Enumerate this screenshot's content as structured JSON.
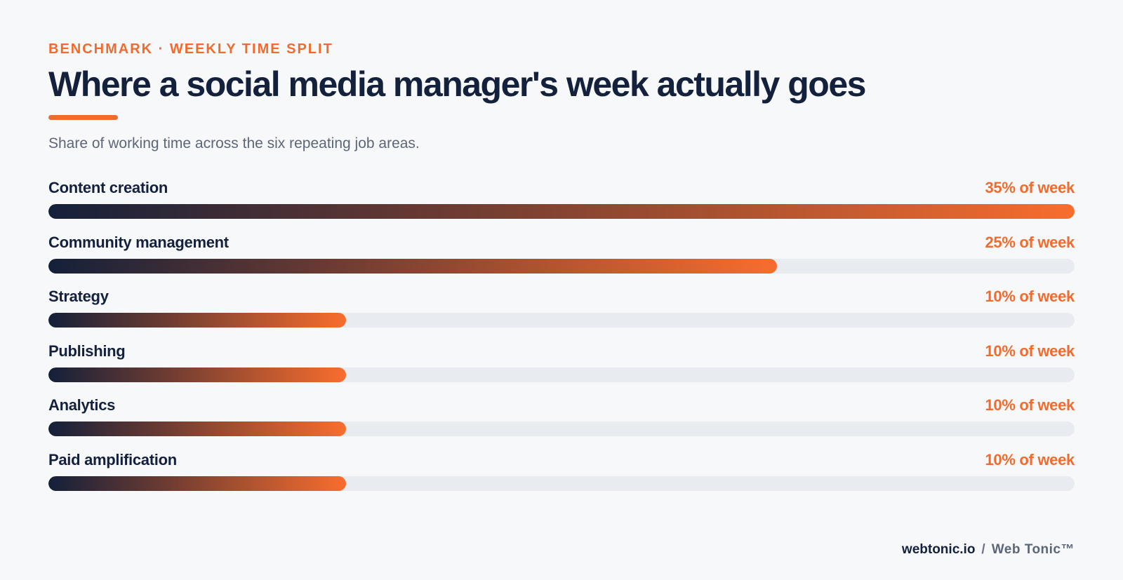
{
  "header": {
    "eyebrow": "BENCHMARK · WEEKLY TIME SPLIT",
    "title": "Where a social media manager's week actually goes",
    "subtitle": "Share of working time across the six repeating job areas."
  },
  "chart_data": {
    "type": "bar",
    "orientation": "horizontal",
    "title": "Where a social media manager's week actually goes",
    "subtitle": "Share of working time across the six repeating job areas.",
    "unit": "% of week",
    "categories": [
      "Content creation",
      "Community management",
      "Strategy",
      "Publishing",
      "Analytics",
      "Paid amplification"
    ],
    "values": [
      35,
      25,
      10,
      10,
      10,
      10
    ],
    "value_labels": [
      "35% of week",
      "25% of week",
      "10% of week",
      "10% of week",
      "10% of week",
      "10% of week"
    ],
    "bar_fill_fraction": [
      1.0,
      0.71,
      0.29,
      0.29,
      0.29,
      0.29
    ],
    "grid": false,
    "legend": "none"
  },
  "footer": {
    "domain": "webtonic.io",
    "separator": "/",
    "brand": "Web Tonic™"
  },
  "colors": {
    "accent": "#f26b2d",
    "navy": "#14213d",
    "track": "#e8ebef",
    "background": "#f7f8fa"
  }
}
